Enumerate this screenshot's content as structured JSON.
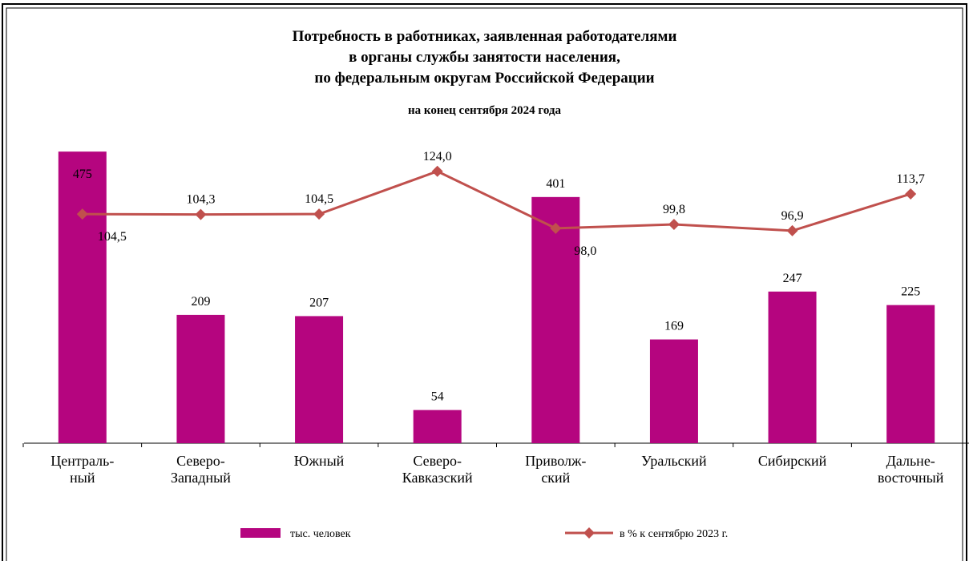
{
  "chart_data": {
    "type": "bar_line",
    "title": "Потребность  в работниках,  заявленная  работодателями\nв органы  службы занятости  населения,\nпо федеральным  округам  Российской  Федерации",
    "subtitle": "на конец  сентября 2024 года",
    "categories": [
      "Централь-\nный",
      "Северо-\nЗападный",
      "Южный",
      "Северо-\nКавказский",
      "Приволж-\nский",
      "Уральский",
      "Сибирский",
      "Дальне-\nвосточный"
    ],
    "series": [
      {
        "name": "тыс. человек",
        "type": "bar",
        "color": "#b5057f",
        "values": [
          475,
          209,
          207,
          54,
          401,
          169,
          247,
          225
        ]
      },
      {
        "name": "в % к сентябрю 2023 г.",
        "type": "line",
        "axis": "y2",
        "color": "#c0504d",
        "values": [
          104.5,
          104.3,
          104.5,
          124.0,
          98.0,
          99.8,
          96.9,
          113.7
        ],
        "value_labels": [
          "104,5",
          "104,3",
          "104,5",
          "124,0",
          "98,0",
          "99,8",
          "96,9",
          "113,7"
        ]
      }
    ],
    "ylim": [
      0,
      500
    ],
    "y2lim": [
      0,
      140
    ]
  }
}
